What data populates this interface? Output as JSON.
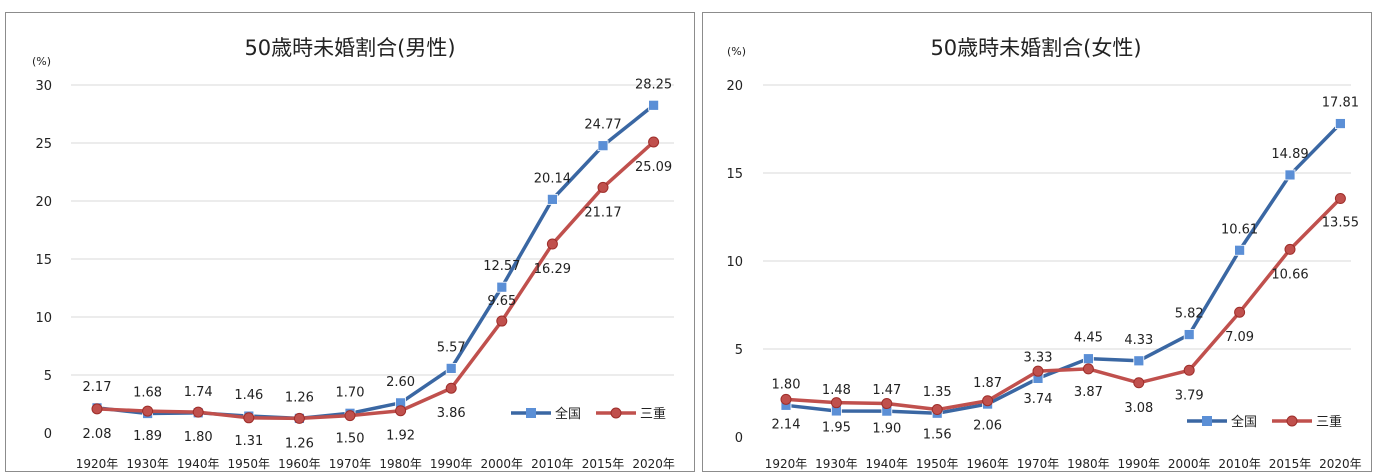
{
  "chart_data": [
    {
      "type": "line",
      "title": "50歳時未婚割合(男性)",
      "unit_label": "(%)",
      "categories": [
        "1920年",
        "1930年",
        "1940年",
        "1950年",
        "1960年",
        "1970年",
        "1980年",
        "1990年",
        "2000年",
        "2010年",
        "2015年",
        "2020年"
      ],
      "ylim": [
        0,
        30
      ],
      "yticks": [
        0,
        5,
        10,
        15,
        20,
        25,
        30
      ],
      "grid": true,
      "legend_position": "bottom-right",
      "series": [
        {
          "name": "全国",
          "color": "#3a67a3",
          "marker_color": "#5b8fd6",
          "marker": "square",
          "values": [
            2.17,
            1.68,
            1.74,
            1.46,
            1.26,
            1.7,
            2.6,
            5.57,
            12.57,
            20.14,
            24.77,
            28.25
          ],
          "labels": [
            "2.17",
            "1.68",
            "1.74",
            "1.46",
            "1.26",
            "1.70",
            "2.60",
            "5.57",
            "12.57",
            "20.14",
            "24.77",
            "28.25"
          ]
        },
        {
          "name": "三重",
          "color": "#c0504d",
          "marker_color": "#c0504d",
          "marker": "circle",
          "values": [
            2.08,
            1.89,
            1.8,
            1.31,
            1.26,
            1.5,
            1.92,
            3.86,
            9.65,
            16.29,
            21.17,
            25.09
          ],
          "labels": [
            "2.08",
            "1.89",
            "1.80",
            "1.31",
            "1.26",
            "1.50",
            "1.92",
            "3.86",
            "9.65",
            "16.29",
            "21.17",
            "25.09"
          ]
        }
      ]
    },
    {
      "type": "line",
      "title": "50歳時未婚割合(女性)",
      "unit_label": "(%)",
      "categories": [
        "1920年",
        "1930年",
        "1940年",
        "1950年",
        "1960年",
        "1970年",
        "1980年",
        "1990年",
        "2000年",
        "2010年",
        "2015年",
        "2020年"
      ],
      "ylim": [
        0,
        20
      ],
      "yticks": [
        0,
        5,
        10,
        15,
        20
      ],
      "grid": true,
      "legend_position": "bottom-right",
      "series": [
        {
          "name": "全国",
          "color": "#3a67a3",
          "marker_color": "#5b8fd6",
          "marker": "square",
          "values": [
            1.8,
            1.48,
            1.47,
            1.35,
            1.87,
            3.33,
            4.45,
            4.33,
            5.82,
            10.61,
            14.89,
            17.81
          ],
          "labels": [
            "1.80",
            "1.48",
            "1.47",
            "1.35",
            "1.87",
            "3.33",
            "4.45",
            "4.33",
            "5.82",
            "10.61",
            "14.89",
            "17.81"
          ]
        },
        {
          "name": "三重",
          "color": "#c0504d",
          "marker_color": "#c0504d",
          "marker": "circle",
          "values": [
            2.14,
            1.95,
            1.9,
            1.56,
            2.06,
            3.74,
            3.87,
            3.08,
            3.79,
            7.09,
            10.66,
            13.55
          ],
          "labels": [
            "2.14",
            "1.95",
            "1.90",
            "1.56",
            "2.06",
            "3.74",
            "3.87",
            "3.08",
            "3.79",
            "7.09",
            "10.66",
            "13.55"
          ]
        }
      ]
    }
  ]
}
